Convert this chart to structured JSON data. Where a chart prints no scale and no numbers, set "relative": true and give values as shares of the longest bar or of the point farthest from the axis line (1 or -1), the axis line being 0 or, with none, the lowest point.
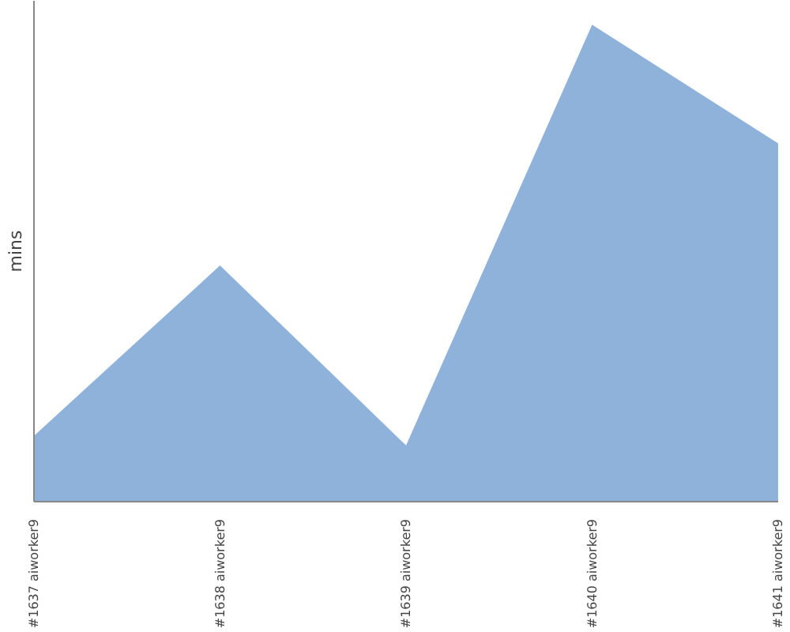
{
  "chart_data": {
    "type": "area",
    "ylabel": "mins",
    "relative": true,
    "grid": false,
    "categories": [
      "#1637 aiworker9",
      "#1638 aiworker9",
      "#1639 aiworker9",
      "#1640 aiworker9",
      "#1641 aiworker9"
    ],
    "series": [
      {
        "color": "#8fb2db",
        "values": [
          0.138,
          0.495,
          0.118,
          1,
          0.751
        ]
      }
    ]
  }
}
